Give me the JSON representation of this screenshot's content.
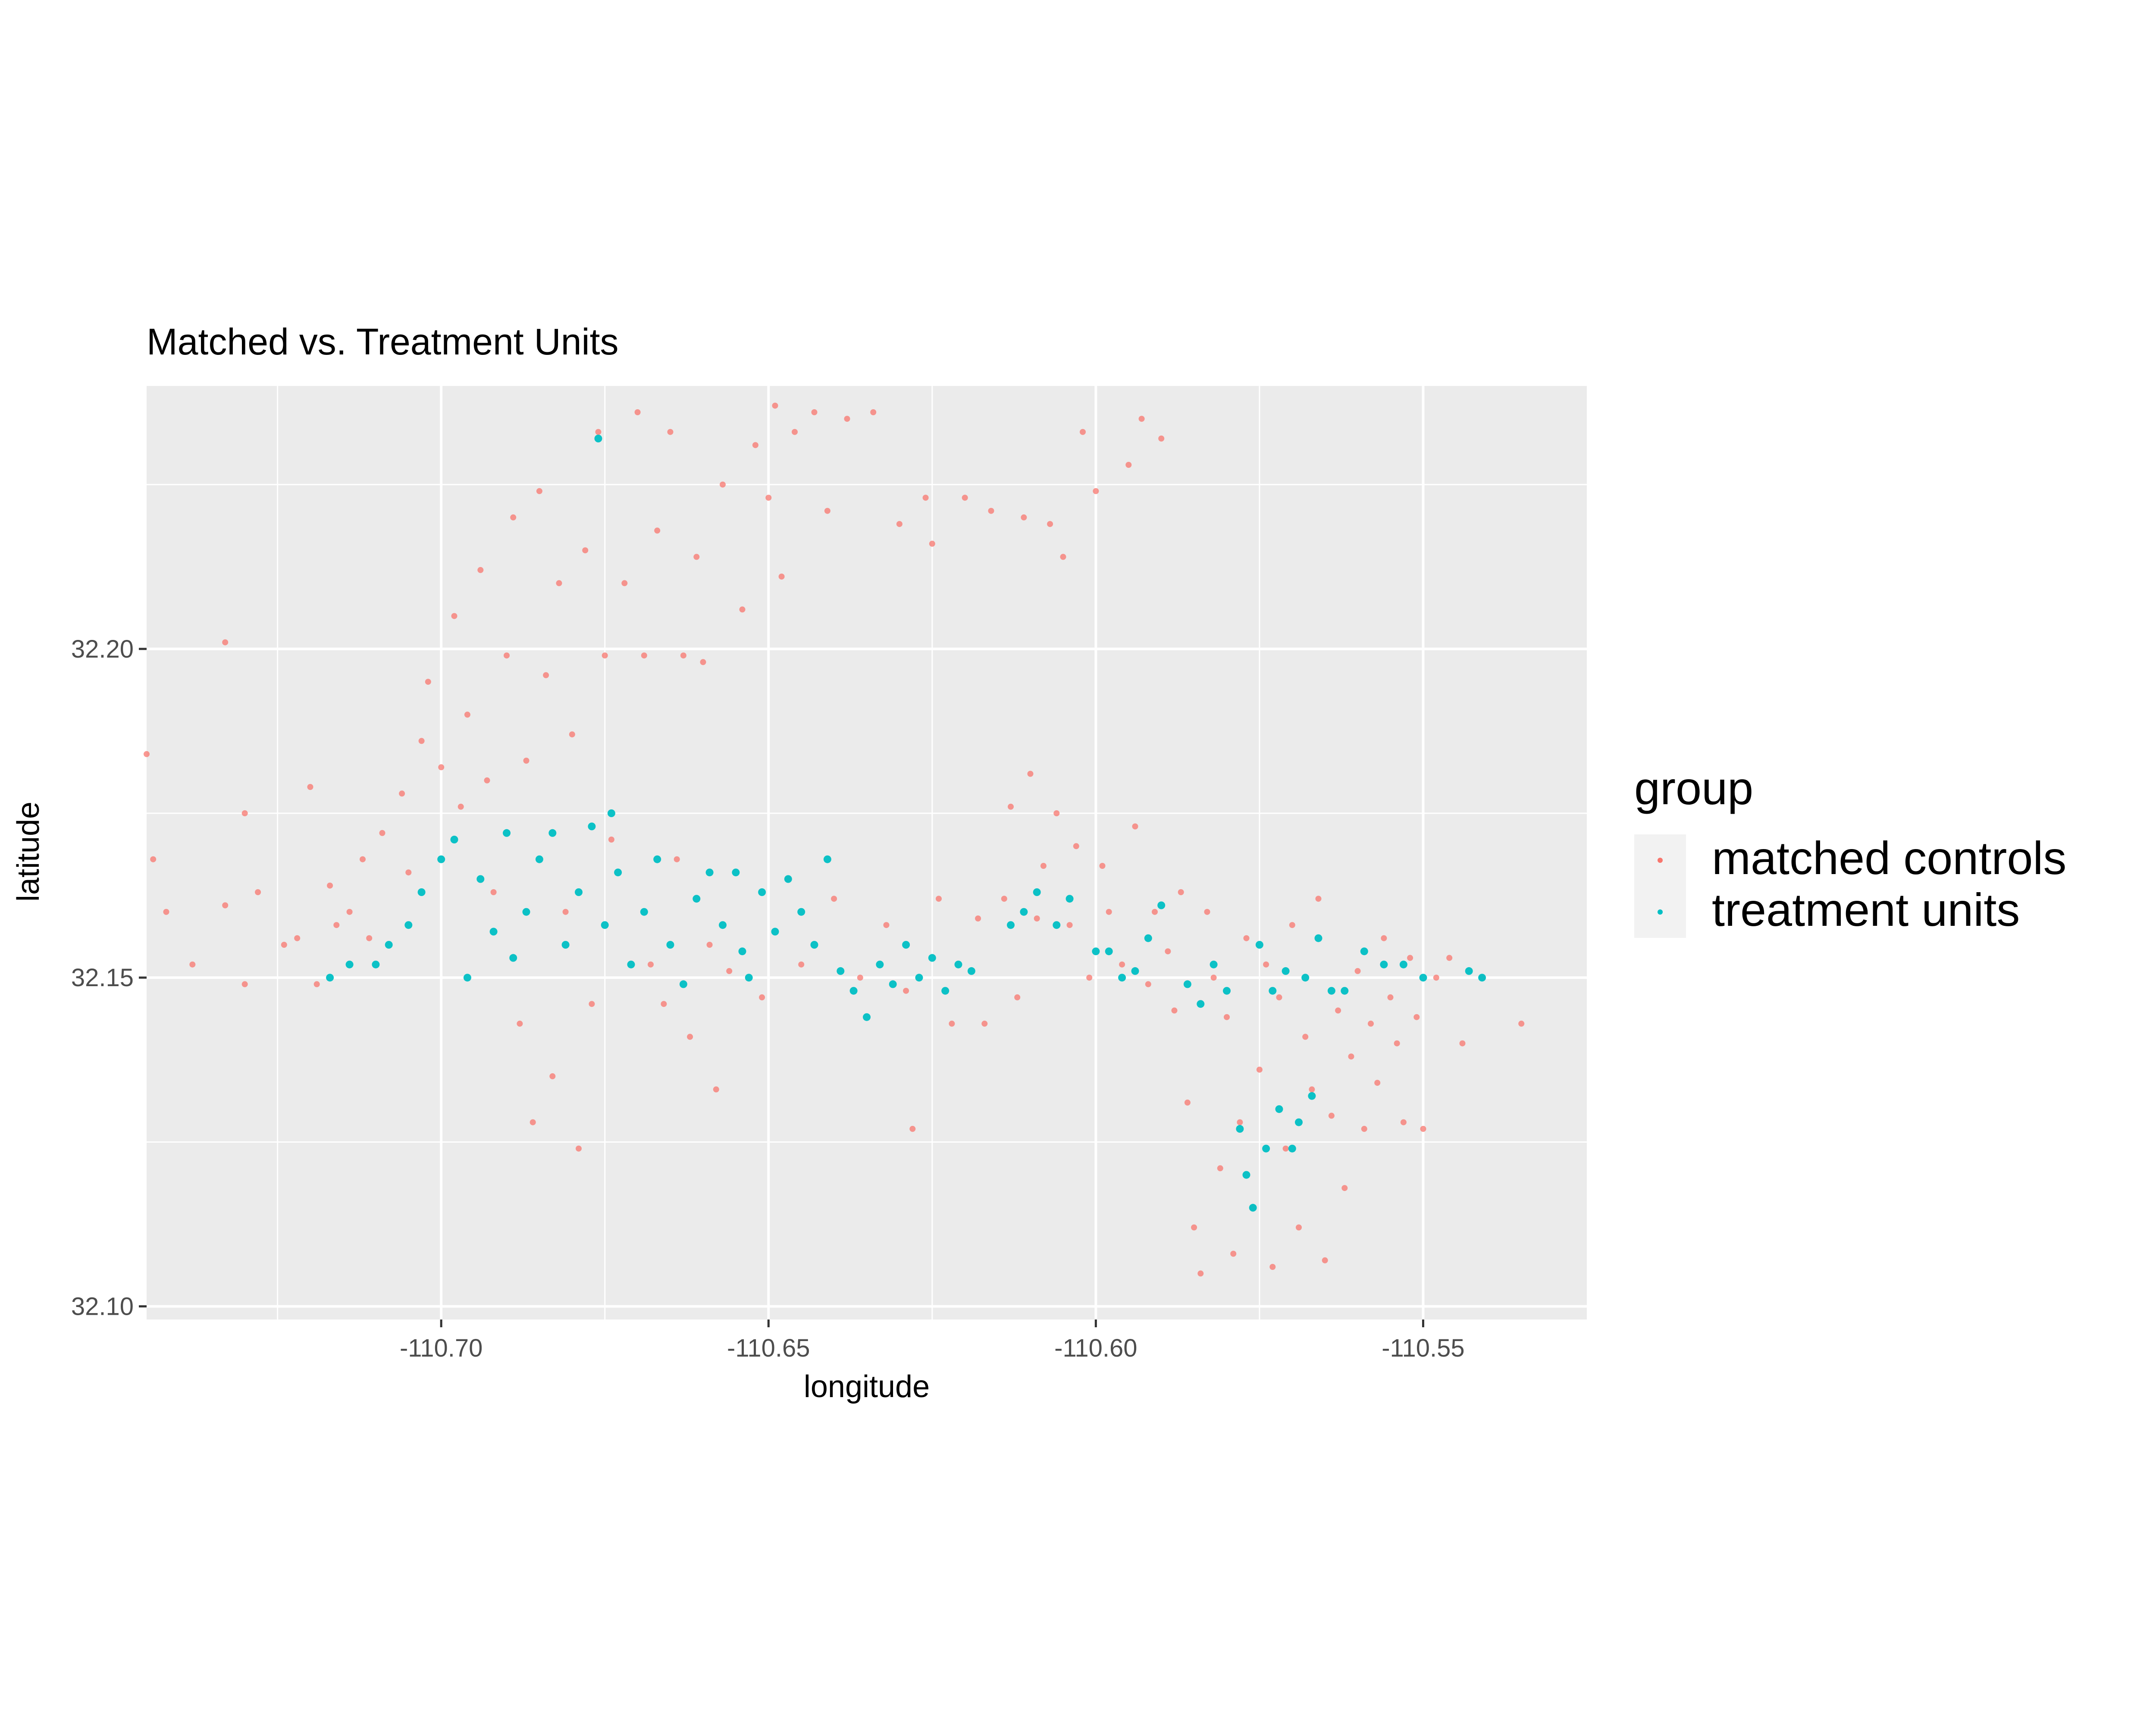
{
  "chart_data": {
    "type": "scatter",
    "title": "Matched vs. Treatment Units",
    "xlabel": "longitude",
    "ylabel": "latitude",
    "xlim": [
      -110.745,
      -110.525
    ],
    "ylim": [
      32.098,
      32.24
    ],
    "x_ticks": [
      -110.7,
      -110.65,
      -110.6,
      -110.55
    ],
    "x_tick_labels": [
      "-110.70",
      "-110.65",
      "-110.60",
      "-110.55"
    ],
    "x_minor_ticks": [
      -110.725,
      -110.675,
      -110.625,
      -110.575
    ],
    "y_ticks": [
      32.1,
      32.15,
      32.2
    ],
    "y_tick_labels": [
      "32.10",
      "32.15",
      "32.20"
    ],
    "y_minor_ticks": [
      32.125,
      32.175,
      32.225
    ],
    "grid": true,
    "legend": {
      "title": "group",
      "position": "right",
      "entries": [
        "matched controls",
        "treatment units"
      ]
    },
    "series": [
      {
        "name": "matched controls",
        "color": "#F8766D",
        "points": [
          [
            -110.745,
            32.184
          ],
          [
            -110.744,
            32.168
          ],
          [
            -110.742,
            32.16
          ],
          [
            -110.738,
            32.152
          ],
          [
            -110.733,
            32.161
          ],
          [
            -110.733,
            32.201
          ],
          [
            -110.73,
            32.175
          ],
          [
            -110.73,
            32.149
          ],
          [
            -110.728,
            32.163
          ],
          [
            -110.724,
            32.155
          ],
          [
            -110.722,
            32.156
          ],
          [
            -110.72,
            32.179
          ],
          [
            -110.719,
            32.149
          ],
          [
            -110.717,
            32.164
          ],
          [
            -110.716,
            32.158
          ],
          [
            -110.714,
            32.16
          ],
          [
            -110.712,
            32.168
          ],
          [
            -110.711,
            32.156
          ],
          [
            -110.709,
            32.172
          ],
          [
            -110.706,
            32.178
          ],
          [
            -110.705,
            32.166
          ],
          [
            -110.703,
            32.186
          ],
          [
            -110.702,
            32.195
          ],
          [
            -110.7,
            32.182
          ],
          [
            -110.698,
            32.205
          ],
          [
            -110.697,
            32.176
          ],
          [
            -110.696,
            32.19
          ],
          [
            -110.694,
            32.212
          ],
          [
            -110.693,
            32.18
          ],
          [
            -110.692,
            32.163
          ],
          [
            -110.69,
            32.199
          ],
          [
            -110.689,
            32.22
          ],
          [
            -110.688,
            32.143
          ],
          [
            -110.687,
            32.183
          ],
          [
            -110.686,
            32.128
          ],
          [
            -110.685,
            32.224
          ],
          [
            -110.684,
            32.196
          ],
          [
            -110.683,
            32.135
          ],
          [
            -110.682,
            32.21
          ],
          [
            -110.681,
            32.16
          ],
          [
            -110.68,
            32.187
          ],
          [
            -110.679,
            32.124
          ],
          [
            -110.678,
            32.215
          ],
          [
            -110.677,
            32.146
          ],
          [
            -110.676,
            32.233
          ],
          [
            -110.675,
            32.199
          ],
          [
            -110.674,
            32.171
          ],
          [
            -110.672,
            32.21
          ],
          [
            -110.67,
            32.236
          ],
          [
            -110.669,
            32.199
          ],
          [
            -110.668,
            32.152
          ],
          [
            -110.667,
            32.218
          ],
          [
            -110.666,
            32.146
          ],
          [
            -110.665,
            32.233
          ],
          [
            -110.664,
            32.168
          ],
          [
            -110.663,
            32.199
          ],
          [
            -110.662,
            32.141
          ],
          [
            -110.661,
            32.214
          ],
          [
            -110.66,
            32.198
          ],
          [
            -110.659,
            32.155
          ],
          [
            -110.658,
            32.133
          ],
          [
            -110.657,
            32.225
          ],
          [
            -110.656,
            32.151
          ],
          [
            -110.654,
            32.206
          ],
          [
            -110.652,
            32.231
          ],
          [
            -110.651,
            32.147
          ],
          [
            -110.65,
            32.223
          ],
          [
            -110.649,
            32.237
          ],
          [
            -110.648,
            32.211
          ],
          [
            -110.647,
            32.165
          ],
          [
            -110.646,
            32.233
          ],
          [
            -110.645,
            32.152
          ],
          [
            -110.643,
            32.236
          ],
          [
            -110.641,
            32.221
          ],
          [
            -110.64,
            32.162
          ],
          [
            -110.638,
            32.235
          ],
          [
            -110.636,
            32.15
          ],
          [
            -110.634,
            32.236
          ],
          [
            -110.632,
            32.158
          ],
          [
            -110.63,
            32.219
          ],
          [
            -110.629,
            32.148
          ],
          [
            -110.628,
            32.127
          ],
          [
            -110.626,
            32.223
          ],
          [
            -110.625,
            32.216
          ],
          [
            -110.624,
            32.162
          ],
          [
            -110.622,
            32.143
          ],
          [
            -110.62,
            32.223
          ],
          [
            -110.618,
            32.159
          ],
          [
            -110.617,
            32.143
          ],
          [
            -110.616,
            32.221
          ],
          [
            -110.614,
            32.162
          ],
          [
            -110.613,
            32.176
          ],
          [
            -110.612,
            32.147
          ],
          [
            -110.611,
            32.22
          ],
          [
            -110.61,
            32.181
          ],
          [
            -110.609,
            32.159
          ],
          [
            -110.608,
            32.167
          ],
          [
            -110.607,
            32.219
          ],
          [
            -110.606,
            32.175
          ],
          [
            -110.605,
            32.214
          ],
          [
            -110.604,
            32.158
          ],
          [
            -110.603,
            32.17
          ],
          [
            -110.602,
            32.233
          ],
          [
            -110.601,
            32.15
          ],
          [
            -110.6,
            32.224
          ],
          [
            -110.599,
            32.167
          ],
          [
            -110.598,
            32.16
          ],
          [
            -110.596,
            32.152
          ],
          [
            -110.595,
            32.228
          ],
          [
            -110.594,
            32.173
          ],
          [
            -110.593,
            32.235
          ],
          [
            -110.592,
            32.149
          ],
          [
            -110.591,
            32.16
          ],
          [
            -110.59,
            32.232
          ],
          [
            -110.589,
            32.154
          ],
          [
            -110.588,
            32.145
          ],
          [
            -110.587,
            32.163
          ],
          [
            -110.586,
            32.131
          ],
          [
            -110.585,
            32.112
          ],
          [
            -110.584,
            32.105
          ],
          [
            -110.583,
            32.16
          ],
          [
            -110.582,
            32.15
          ],
          [
            -110.581,
            32.121
          ],
          [
            -110.58,
            32.144
          ],
          [
            -110.579,
            32.108
          ],
          [
            -110.578,
            32.128
          ],
          [
            -110.577,
            32.156
          ],
          [
            -110.576,
            32.115
          ],
          [
            -110.575,
            32.136
          ],
          [
            -110.574,
            32.152
          ],
          [
            -110.573,
            32.106
          ],
          [
            -110.572,
            32.147
          ],
          [
            -110.571,
            32.124
          ],
          [
            -110.57,
            32.158
          ],
          [
            -110.569,
            32.112
          ],
          [
            -110.568,
            32.141
          ],
          [
            -110.567,
            32.133
          ],
          [
            -110.566,
            32.162
          ],
          [
            -110.565,
            32.107
          ],
          [
            -110.564,
            32.129
          ],
          [
            -110.563,
            32.145
          ],
          [
            -110.562,
            32.118
          ],
          [
            -110.561,
            32.138
          ],
          [
            -110.56,
            32.151
          ],
          [
            -110.559,
            32.127
          ],
          [
            -110.558,
            32.143
          ],
          [
            -110.557,
            32.134
          ],
          [
            -110.556,
            32.156
          ],
          [
            -110.555,
            32.147
          ],
          [
            -110.554,
            32.14
          ],
          [
            -110.553,
            32.128
          ],
          [
            -110.552,
            32.153
          ],
          [
            -110.551,
            32.144
          ],
          [
            -110.55,
            32.127
          ],
          [
            -110.548,
            32.15
          ],
          [
            -110.546,
            32.153
          ],
          [
            -110.544,
            32.14
          ],
          [
            -110.541,
            32.15
          ],
          [
            -110.535,
            32.143
          ]
        ]
      },
      {
        "name": "treatment units",
        "color": "#00BFC4",
        "points": [
          [
            -110.717,
            32.15
          ],
          [
            -110.714,
            32.152
          ],
          [
            -110.71,
            32.152
          ],
          [
            -110.708,
            32.155
          ],
          [
            -110.705,
            32.158
          ],
          [
            -110.703,
            32.163
          ],
          [
            -110.7,
            32.168
          ],
          [
            -110.698,
            32.171
          ],
          [
            -110.696,
            32.15
          ],
          [
            -110.694,
            32.165
          ],
          [
            -110.692,
            32.157
          ],
          [
            -110.69,
            32.172
          ],
          [
            -110.689,
            32.153
          ],
          [
            -110.687,
            32.16
          ],
          [
            -110.685,
            32.168
          ],
          [
            -110.683,
            32.172
          ],
          [
            -110.681,
            32.155
          ],
          [
            -110.679,
            32.163
          ],
          [
            -110.677,
            32.173
          ],
          [
            -110.676,
            32.232
          ],
          [
            -110.675,
            32.158
          ],
          [
            -110.674,
            32.175
          ],
          [
            -110.673,
            32.166
          ],
          [
            -110.671,
            32.152
          ],
          [
            -110.669,
            32.16
          ],
          [
            -110.667,
            32.168
          ],
          [
            -110.665,
            32.155
          ],
          [
            -110.663,
            32.149
          ],
          [
            -110.661,
            32.162
          ],
          [
            -110.659,
            32.166
          ],
          [
            -110.657,
            32.158
          ],
          [
            -110.655,
            32.166
          ],
          [
            -110.654,
            32.154
          ],
          [
            -110.653,
            32.15
          ],
          [
            -110.651,
            32.163
          ],
          [
            -110.649,
            32.157
          ],
          [
            -110.647,
            32.165
          ],
          [
            -110.645,
            32.16
          ],
          [
            -110.643,
            32.155
          ],
          [
            -110.641,
            32.168
          ],
          [
            -110.639,
            32.151
          ],
          [
            -110.637,
            32.148
          ],
          [
            -110.635,
            32.144
          ],
          [
            -110.633,
            32.152
          ],
          [
            -110.631,
            32.149
          ],
          [
            -110.629,
            32.155
          ],
          [
            -110.627,
            32.15
          ],
          [
            -110.625,
            32.153
          ],
          [
            -110.623,
            32.148
          ],
          [
            -110.621,
            32.152
          ],
          [
            -110.619,
            32.151
          ],
          [
            -110.613,
            32.158
          ],
          [
            -110.611,
            32.16
          ],
          [
            -110.609,
            32.163
          ],
          [
            -110.606,
            32.158
          ],
          [
            -110.604,
            32.162
          ],
          [
            -110.6,
            32.154
          ],
          [
            -110.598,
            32.154
          ],
          [
            -110.596,
            32.15
          ],
          [
            -110.594,
            32.151
          ],
          [
            -110.592,
            32.156
          ],
          [
            -110.59,
            32.161
          ],
          [
            -110.586,
            32.149
          ],
          [
            -110.584,
            32.146
          ],
          [
            -110.582,
            32.152
          ],
          [
            -110.58,
            32.148
          ],
          [
            -110.578,
            32.127
          ],
          [
            -110.577,
            32.12
          ],
          [
            -110.576,
            32.115
          ],
          [
            -110.575,
            32.155
          ],
          [
            -110.574,
            32.124
          ],
          [
            -110.573,
            32.148
          ],
          [
            -110.572,
            32.13
          ],
          [
            -110.571,
            32.151
          ],
          [
            -110.57,
            32.124
          ],
          [
            -110.569,
            32.128
          ],
          [
            -110.568,
            32.15
          ],
          [
            -110.567,
            32.132
          ],
          [
            -110.566,
            32.156
          ],
          [
            -110.564,
            32.148
          ],
          [
            -110.562,
            32.148
          ],
          [
            -110.559,
            32.154
          ],
          [
            -110.556,
            32.152
          ],
          [
            -110.553,
            32.152
          ],
          [
            -110.55,
            32.15
          ],
          [
            -110.543,
            32.151
          ],
          [
            -110.541,
            32.15
          ]
        ]
      }
    ]
  }
}
